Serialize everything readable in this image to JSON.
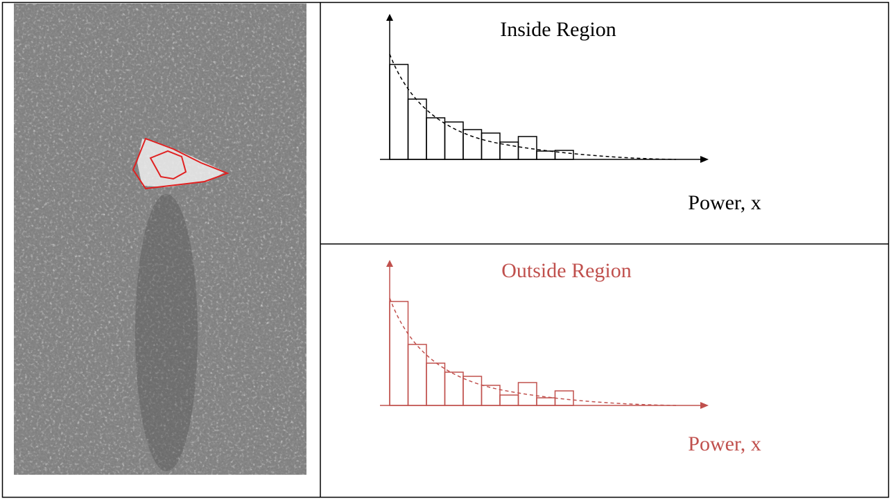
{
  "chart_data": [
    {
      "type": "bar",
      "title": "Inside Region",
      "x_label": "Power, x",
      "color": "#000000",
      "categories": [
        null,
        null,
        null,
        null,
        null,
        null,
        null,
        null,
        null,
        null
      ],
      "values": [
        137,
        87,
        60,
        54,
        43,
        38,
        25,
        33,
        12,
        13
      ]
    },
    {
      "type": "bar",
      "title": "Outside Region",
      "x_label": "Power, x",
      "color": "#c0504d",
      "categories": [
        null,
        null,
        null,
        null,
        null,
        null,
        null,
        null,
        null,
        null
      ],
      "values": [
        150,
        88,
        61,
        48,
        42,
        29,
        15,
        33,
        11,
        21
      ]
    }
  ]
}
